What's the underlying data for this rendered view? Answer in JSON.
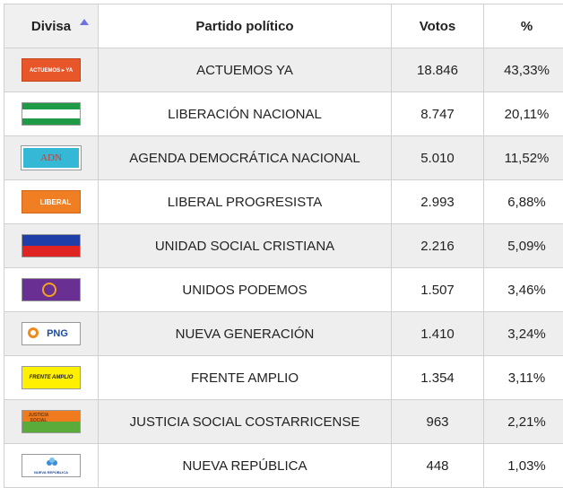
{
  "headers": {
    "divisa": "Divisa",
    "partido": "Partido político",
    "votos": "Votos",
    "pct": "%"
  },
  "rows": [
    {
      "partido": "ACTUEMOS YA",
      "votos": "18.846",
      "pct": "43,33%",
      "flag_icon": "actuemos-ya-flag-icon",
      "flag_text": "ACTUEMOS ▸ YA"
    },
    {
      "partido": "LIBERACIÓN NACIONAL",
      "votos": "8.747",
      "pct": "20,11%",
      "flag_icon": "liberacion-nacional-flag-icon"
    },
    {
      "partido": "AGENDA DEMOCRÁTICA NACIONAL",
      "votos": "5.010",
      "pct": "11,52%",
      "flag_icon": "adn-flag-icon",
      "flag_text": "ADN"
    },
    {
      "partido": "LIBERAL PROGRESISTA",
      "votos": "2.993",
      "pct": "6,88%",
      "flag_icon": "liberal-progresista-flag-icon",
      "flag_text": "LIBERAL"
    },
    {
      "partido": "UNIDAD SOCIAL CRISTIANA",
      "votos": "2.216",
      "pct": "5,09%",
      "flag_icon": "unidad-social-cristiana-flag-icon"
    },
    {
      "partido": "UNIDOS PODEMOS",
      "votos": "1.507",
      "pct": "3,46%",
      "flag_icon": "unidos-podemos-flag-icon"
    },
    {
      "partido": "NUEVA GENERACIÓN",
      "votos": "1.410",
      "pct": "3,24%",
      "flag_icon": "nueva-generacion-flag-icon",
      "flag_text": "PNG"
    },
    {
      "partido": "FRENTE AMPLIO",
      "votos": "1.354",
      "pct": "3,11%",
      "flag_icon": "frente-amplio-flag-icon",
      "flag_text": "FRENTE AMPLIO"
    },
    {
      "partido": "JUSTICIA SOCIAL COSTARRICENSE",
      "votos": "963",
      "pct": "2,21%",
      "flag_icon": "justicia-social-flag-icon",
      "flag_text": "JUSTICIA SOCIAL"
    },
    {
      "partido": "NUEVA REPÚBLICA",
      "votos": "448",
      "pct": "1,03%",
      "flag_icon": "nueva-republica-flag-icon",
      "flag_text": "NUEVA REPÚBLICA"
    }
  ]
}
